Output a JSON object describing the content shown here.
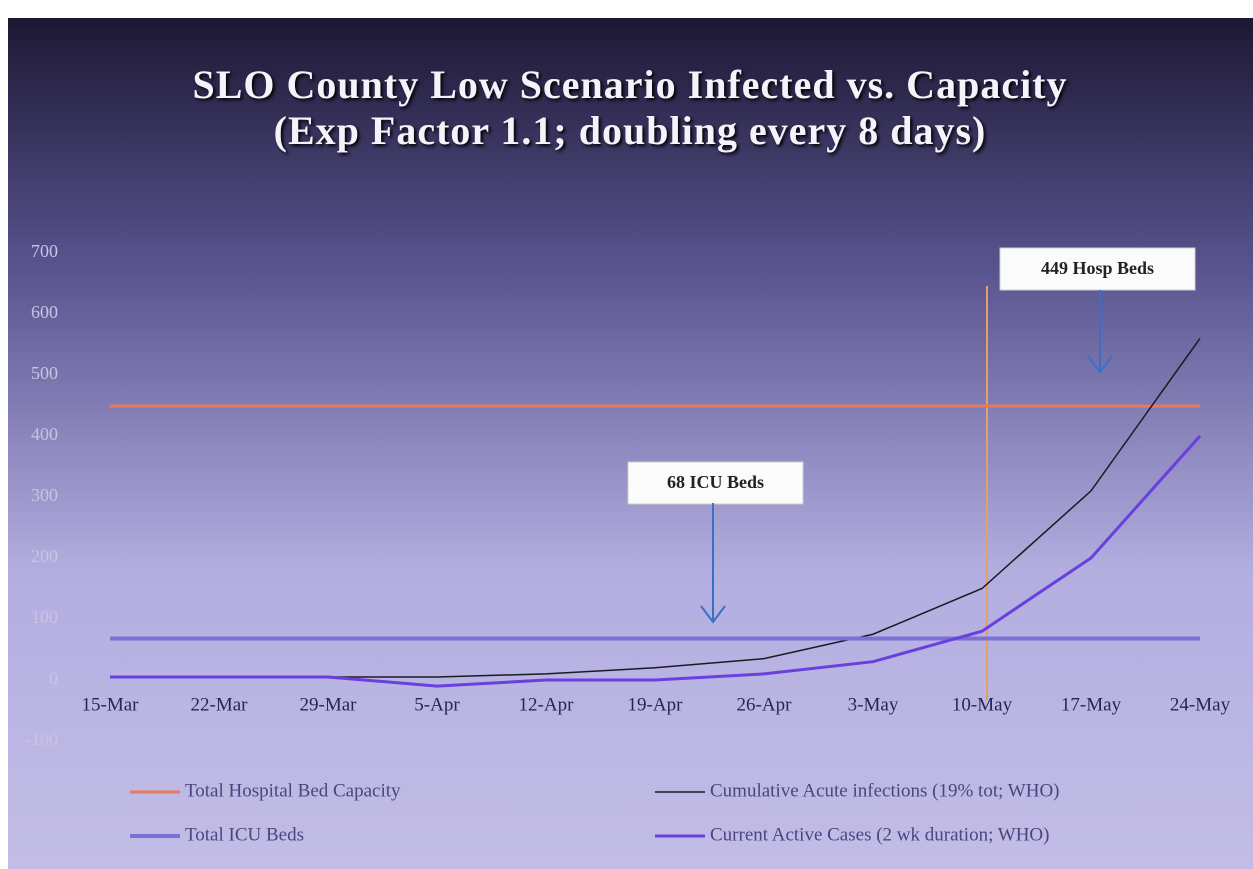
{
  "chart_data": {
    "type": "line",
    "title": "SLO County Low Scenario Infected vs. Capacity (Exp Factor 1.1; doubling every 8 days)",
    "categories": [
      "15-Mar",
      "22-Mar",
      "29-Mar",
      "5-Apr",
      "12-Apr",
      "19-Apr",
      "26-Apr",
      "3-May",
      "10-May",
      "17-May",
      "24-May"
    ],
    "series": [
      {
        "name": "Total Hospital Bed Capacity",
        "color": "#e8795a",
        "values": [
          449,
          449,
          449,
          449,
          449,
          449,
          449,
          449,
          449,
          449,
          449
        ]
      },
      {
        "name": "Cumulative Acute infections (19% tot; WHO)",
        "color": "#1a1a22",
        "values": [
          5,
          5,
          5,
          5,
          10,
          20,
          35,
          75,
          150,
          310,
          560
        ]
      },
      {
        "name": "Total ICU Beds",
        "color": "#7b70d4",
        "values": [
          68,
          68,
          68,
          68,
          68,
          68,
          68,
          68,
          68,
          68,
          68
        ]
      },
      {
        "name": "Current Active Cases (2 wk duration; WHO)",
        "color": "#6a3fe0",
        "values": [
          5,
          5,
          5,
          -10,
          0,
          0,
          10,
          30,
          80,
          200,
          400
        ]
      }
    ],
    "annotations": [
      "449 Hosp Beds",
      "68 ICU Beds"
    ],
    "ylim": [
      -100,
      700
    ],
    "yticks": [
      -100,
      0,
      100,
      200,
      300,
      400,
      500,
      600,
      700
    ],
    "grid": false
  }
}
